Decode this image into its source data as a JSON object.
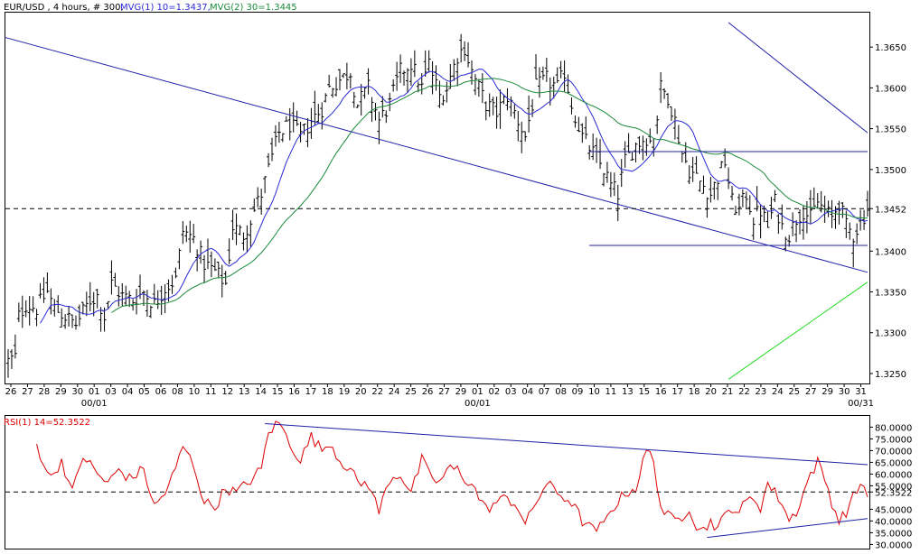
{
  "colors": {
    "background": "#ffffff",
    "frame": "#000000",
    "price_bars": "#000000",
    "mvg10": "#2b2bd8",
    "mvg30": "#1a8a3a",
    "trendline_blue": "#1f1fa8",
    "trendline_green": "#22dd22",
    "rsi_line": "#dd0000",
    "hline": "#000000"
  },
  "header": {
    "symbol_label": "EUR/USD , 4 hours, # 300,",
    "mvg10_label": "MVG(1) 10=1.3437,",
    "mvg30_label": "MVG(2) 30=1.3445"
  },
  "rsi_header": {
    "label": "RSI(1) 14=52.3522"
  },
  "chart_data": [
    {
      "type": "ohlc",
      "ylim": [
        1.324,
        1.369
      ],
      "y_ticks": [
        "1.3650",
        "1.3600",
        "1.3550",
        "1.3500",
        "1.3400",
        "1.3350",
        "1.3300",
        "1.3250"
      ],
      "x_tick_labels": [
        "26",
        "27",
        "28",
        "29",
        "30",
        "01",
        "03",
        "04",
        "05",
        "06",
        "08",
        "10",
        "11",
        "12",
        "13",
        "14",
        "15",
        "16",
        "17",
        "18",
        "19",
        "20",
        "22",
        "24",
        "25",
        "26",
        "27",
        "29",
        "01",
        "02",
        "03",
        "04",
        "07",
        "08",
        "09",
        "10",
        "11",
        "13",
        "15",
        "16",
        "17",
        "18",
        "20",
        "21",
        "22",
        "23",
        "24",
        "25",
        "27",
        "29",
        "30",
        "31"
      ],
      "x_group_labels": [
        "00/01",
        "00/01",
        "00/31"
      ],
      "last_value_label": "1.3452",
      "last_value": 1.3452,
      "anchors": [
        [
          0,
          1.3265
        ],
        [
          2,
          1.327
        ],
        [
          3,
          1.332
        ],
        [
          5,
          1.3335
        ],
        [
          8,
          1.333
        ],
        [
          11,
          1.335
        ],
        [
          13,
          1.333
        ],
        [
          16,
          1.332
        ],
        [
          19,
          1.331
        ],
        [
          21,
          1.3325
        ],
        [
          23,
          1.334
        ],
        [
          25,
          1.3345
        ],
        [
          27,
          1.332
        ],
        [
          29,
          1.336
        ],
        [
          32,
          1.3345
        ],
        [
          35,
          1.334
        ],
        [
          38,
          1.335
        ],
        [
          41,
          1.3335
        ],
        [
          44,
          1.3355
        ],
        [
          47,
          1.3365
        ],
        [
          49,
          1.3425
        ],
        [
          52,
          1.3415
        ],
        [
          55,
          1.3385
        ],
        [
          58,
          1.3375
        ],
        [
          61,
          1.336
        ],
        [
          63,
          1.343
        ],
        [
          66,
          1.342
        ],
        [
          69,
          1.345
        ],
        [
          71,
          1.347
        ],
        [
          73,
          1.35
        ],
        [
          76,
          1.3545
        ],
        [
          79,
          1.3555
        ],
        [
          82,
          1.354
        ],
        [
          85,
          1.356
        ],
        [
          88,
          1.3575
        ],
        [
          90,
          1.36
        ],
        [
          93,
          1.361
        ],
        [
          96,
          1.362
        ],
        [
          98,
          1.358
        ],
        [
          101,
          1.36
        ],
        [
          104,
          1.356
        ],
        [
          107,
          1.358
        ],
        [
          110,
          1.362
        ],
        [
          113,
          1.363
        ],
        [
          116,
          1.36
        ],
        [
          118,
          1.363
        ],
        [
          121,
          1.359
        ],
        [
          123,
          1.36
        ],
        [
          126,
          1.364
        ],
        [
          128,
          1.365
        ],
        [
          130,
          1.362
        ],
        [
          132,
          1.36
        ],
        [
          134,
          1.358
        ],
        [
          137,
          1.357
        ],
        [
          140,
          1.359
        ],
        [
          143,
          1.356
        ],
        [
          145,
          1.354
        ],
        [
          148,
          1.36
        ],
        [
          151,
          1.361
        ],
        [
          154,
          1.36
        ],
        [
          156,
          1.362
        ],
        [
          158,
          1.358
        ],
        [
          161,
          1.354
        ],
        [
          164,
          1.352
        ],
        [
          167,
          1.35
        ],
        [
          169,
          1.348
        ],
        [
          171,
          1.347
        ],
        [
          173,
          1.351
        ],
        [
          176,
          1.353
        ],
        [
          179,
          1.354
        ],
        [
          181,
          1.353
        ],
        [
          183,
          1.36
        ],
        [
          185,
          1.359
        ],
        [
          187,
          1.356
        ],
        [
          189,
          1.352
        ],
        [
          191,
          1.35
        ],
        [
          193,
          1.349
        ],
        [
          195,
          1.348
        ],
        [
          197,
          1.347
        ],
        [
          199,
          1.349
        ],
        [
          201,
          1.351
        ],
        [
          203,
          1.346
        ],
        [
          205,
          1.345
        ],
        [
          207,
          1.347
        ],
        [
          209,
          1.344
        ],
        [
          211,
          1.345
        ],
        [
          213,
          1.343
        ],
        [
          215,
          1.346
        ],
        [
          217,
          1.343
        ],
        [
          219,
          1.342
        ],
        [
          221,
          1.344
        ],
        [
          223,
          1.345
        ],
        [
          225,
          1.344
        ],
        [
          227,
          1.346
        ],
        [
          229,
          1.345
        ],
        [
          231,
          1.344
        ],
        [
          233,
          1.346
        ],
        [
          235,
          1.343
        ],
        [
          237,
          1.342
        ],
        [
          239,
          1.3435
        ],
        [
          241,
          1.3452
        ]
      ],
      "series": [
        {
          "name": "MVG(1) 10",
          "period": 10
        },
        {
          "name": "MVG(2) 30",
          "period": 30
        }
      ],
      "trendlines": [
        {
          "color_key": "trendline_blue",
          "from": [
            -1,
            1.3662
          ],
          "to": [
            241,
            1.3374
          ]
        },
        {
          "color_key": "trendline_blue",
          "from": [
            202,
            1.368
          ],
          "to": [
            241,
            1.3545
          ]
        },
        {
          "color_key": "trendline_green",
          "from": [
            202,
            1.3243
          ],
          "to": [
            241,
            1.3362
          ]
        },
        {
          "color_key": "trendline_blue",
          "from": [
            163,
            1.3522
          ],
          "to": [
            241,
            1.3522
          ]
        },
        {
          "color_key": "trendline_blue",
          "from": [
            163,
            1.3407
          ],
          "to": [
            241,
            1.3407
          ]
        }
      ],
      "hline": 1.3452
    },
    {
      "type": "line",
      "name": "RSI(1) 14",
      "ylim": [
        29,
        84
      ],
      "y_ticks": [
        "80.0000",
        "75.0000",
        "70.0000",
        "65.0000",
        "60.0000",
        "55.0000",
        "45.0000",
        "40.0000",
        "35.0000",
        "30.0000"
      ],
      "last_value_label": "52.3522",
      "last_value": 52.3522,
      "hline": 52.3522,
      "anchors": [
        [
          8,
          72
        ],
        [
          12,
          58
        ],
        [
          15,
          66
        ],
        [
          18,
          52
        ],
        [
          21,
          68
        ],
        [
          25,
          60
        ],
        [
          28,
          56
        ],
        [
          31,
          62
        ],
        [
          34,
          58
        ],
        [
          38,
          62
        ],
        [
          41,
          46
        ],
        [
          44,
          52
        ],
        [
          47,
          62
        ],
        [
          49,
          72
        ],
        [
          52,
          64
        ],
        [
          55,
          48
        ],
        [
          58,
          46
        ],
        [
          61,
          54
        ],
        [
          64,
          52
        ],
        [
          67,
          56
        ],
        [
          71,
          62
        ],
        [
          73,
          78
        ],
        [
          76,
          82
        ],
        [
          79,
          73
        ],
        [
          82,
          66
        ],
        [
          85,
          76
        ],
        [
          88,
          70
        ],
        [
          90,
          74
        ],
        [
          93,
          66
        ],
        [
          96,
          62
        ],
        [
          98,
          56
        ],
        [
          101,
          56
        ],
        [
          104,
          44
        ],
        [
          107,
          58
        ],
        [
          110,
          60
        ],
        [
          113,
          52
        ],
        [
          116,
          66
        ],
        [
          118,
          60
        ],
        [
          121,
          56
        ],
        [
          123,
          62
        ],
        [
          126,
          62
        ],
        [
          128,
          58
        ],
        [
          130,
          56
        ],
        [
          132,
          50
        ],
        [
          134,
          45
        ],
        [
          137,
          48
        ],
        [
          140,
          50
        ],
        [
          143,
          46
        ],
        [
          145,
          38
        ],
        [
          148,
          48
        ],
        [
          151,
          56
        ],
        [
          154,
          52
        ],
        [
          156,
          50
        ],
        [
          158,
          48
        ],
        [
          161,
          40
        ],
        [
          164,
          36
        ],
        [
          167,
          38
        ],
        [
          169,
          45
        ],
        [
          171,
          48
        ],
        [
          173,
          52
        ],
        [
          176,
          54
        ],
        [
          179,
          70
        ],
        [
          181,
          66
        ],
        [
          183,
          46
        ],
        [
          185,
          42
        ],
        [
          187,
          40
        ],
        [
          189,
          42
        ],
        [
          191,
          46
        ],
        [
          193,
          38
        ],
        [
          195,
          36
        ],
        [
          197,
          40
        ],
        [
          199,
          37
        ],
        [
          201,
          42
        ],
        [
          203,
          46
        ],
        [
          205,
          44
        ],
        [
          207,
          48
        ],
        [
          209,
          50
        ],
        [
          211,
          46
        ],
        [
          213,
          56
        ],
        [
          215,
          52
        ],
        [
          217,
          48
        ],
        [
          219,
          40
        ],
        [
          221,
          44
        ],
        [
          223,
          52
        ],
        [
          225,
          60
        ],
        [
          227,
          65
        ],
        [
          229,
          58
        ],
        [
          231,
          48
        ],
        [
          233,
          40
        ],
        [
          235,
          44
        ],
        [
          237,
          50
        ],
        [
          239,
          56
        ],
        [
          241,
          52.35
        ]
      ],
      "trendlines": [
        {
          "color_key": "trendline_blue",
          "from": [
            72,
            81.5
          ],
          "to": [
            241,
            64
          ]
        },
        {
          "color_key": "trendline_blue",
          "from": [
            196,
            33
          ],
          "to": [
            241,
            41
          ]
        }
      ]
    }
  ]
}
